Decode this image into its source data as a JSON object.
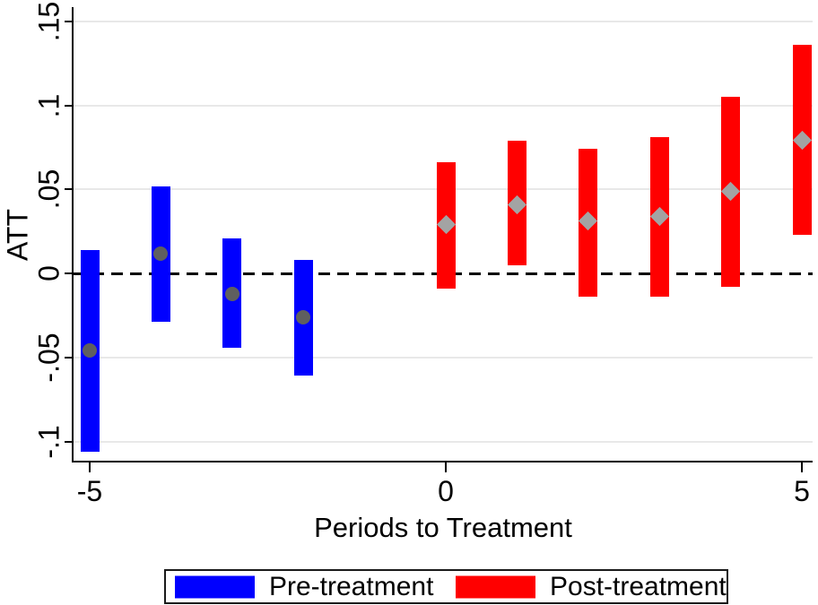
{
  "chart_data": {
    "type": "bar",
    "subtype": "range-bars-with-point-estimates (event study)",
    "title": "",
    "xlabel": "Periods to Treatment",
    "ylabel": "ATT",
    "xlim": [
      -5.25,
      5.2
    ],
    "ylim": [
      -0.112,
      0.157
    ],
    "grid": true,
    "zero_reference_line": {
      "value": 0,
      "style": "dashed",
      "color": "#000000"
    },
    "x_ticks": [
      {
        "value": -5,
        "label": "-5"
      },
      {
        "value": 0,
        "label": "0"
      },
      {
        "value": 5,
        "label": "5"
      }
    ],
    "y_ticks": [
      {
        "value": 0.15,
        "label": ".15"
      },
      {
        "value": 0.1,
        "label": ".1"
      },
      {
        "value": 0.05,
        "label": ".05"
      },
      {
        "value": 0,
        "label": "0"
      },
      {
        "value": -0.05,
        "label": "-.05"
      },
      {
        "value": -0.1,
        "label": "-.1"
      }
    ],
    "series": [
      {
        "name": "Pre-treatment",
        "bar_color": "#0000ff",
        "marker": "circle",
        "marker_color": "#5f5f5f",
        "points": [
          {
            "x": -5,
            "est": -0.046,
            "lo": -0.106,
            "hi": 0.014
          },
          {
            "x": -4,
            "est": 0.012,
            "lo": -0.029,
            "hi": 0.052
          },
          {
            "x": -3,
            "est": -0.012,
            "lo": -0.044,
            "hi": 0.021
          },
          {
            "x": -2,
            "est": -0.026,
            "lo": -0.061,
            "hi": 0.008
          }
        ]
      },
      {
        "name": "Post-treatment",
        "bar_color": "#ff0000",
        "marker": "diamond",
        "marker_color": "#a3a3a3",
        "points": [
          {
            "x": 0,
            "est": 0.029,
            "lo": -0.009,
            "hi": 0.066
          },
          {
            "x": 1,
            "est": 0.041,
            "lo": 0.005,
            "hi": 0.079
          },
          {
            "x": 2,
            "est": 0.031,
            "lo": -0.014,
            "hi": 0.074
          },
          {
            "x": 3,
            "est": 0.034,
            "lo": -0.014,
            "hi": 0.081
          },
          {
            "x": 4,
            "est": 0.049,
            "lo": -0.008,
            "hi": 0.105
          },
          {
            "x": 5,
            "est": 0.079,
            "lo": 0.023,
            "hi": 0.136
          }
        ]
      }
    ],
    "legend": {
      "position": "bottom-center",
      "boxed": true
    }
  }
}
